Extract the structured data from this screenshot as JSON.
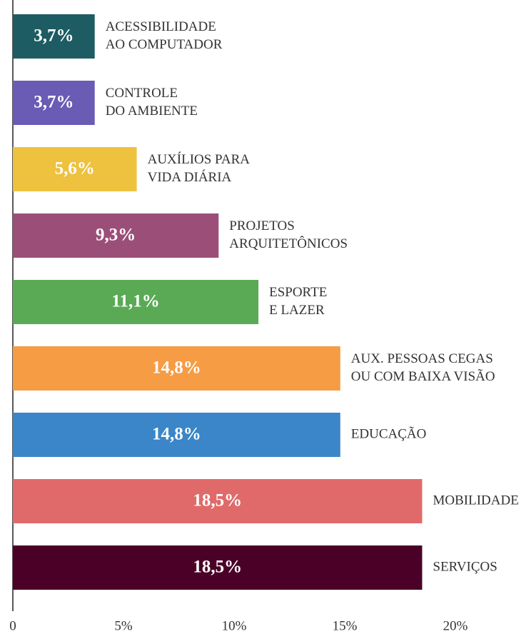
{
  "chart_data": {
    "type": "hbar",
    "categories": [
      [
        "ACESSIBILIDADE",
        "AO COMPUTADOR"
      ],
      [
        "CONTROLE",
        "DO AMBIENTE"
      ],
      [
        "AUXÍLIOS PARA",
        "VIDA DIÁRIA"
      ],
      [
        "PROJETOS",
        "ARQUITETÔNICOS"
      ],
      [
        "ESPORTE",
        "E LAZER"
      ],
      [
        "AUX. PESSOAS CEGAS",
        "OU COM BAIXA VISÃO"
      ],
      [
        "EDUCAÇÃO"
      ],
      [
        "MOBILIDADE"
      ],
      [
        "SERVIÇOS"
      ]
    ],
    "values": [
      3.7,
      3.7,
      5.6,
      9.3,
      11.1,
      14.8,
      14.8,
      18.5,
      18.5
    ],
    "value_labels": [
      "3,7%",
      "3,7%",
      "5,6%",
      "9,3%",
      "11,1%",
      "14,8%",
      "14,8%",
      "18,5%",
      "18,5%"
    ],
    "colors": [
      "#1d5c63",
      "#6a5bb5",
      "#eec13f",
      "#9b4f78",
      "#5aaa55",
      "#f59c45",
      "#3a86c8",
      "#e06a6a",
      "#4a0027"
    ],
    "xlim": [
      0,
      20
    ],
    "xticks": [
      0,
      {
        "value": 5,
        "label": "5%"
      },
      {
        "value": 10,
        "label": "10%"
      },
      {
        "value": 15,
        "label": "15%"
      },
      {
        "value": 20,
        "label": "20%"
      }
    ]
  }
}
